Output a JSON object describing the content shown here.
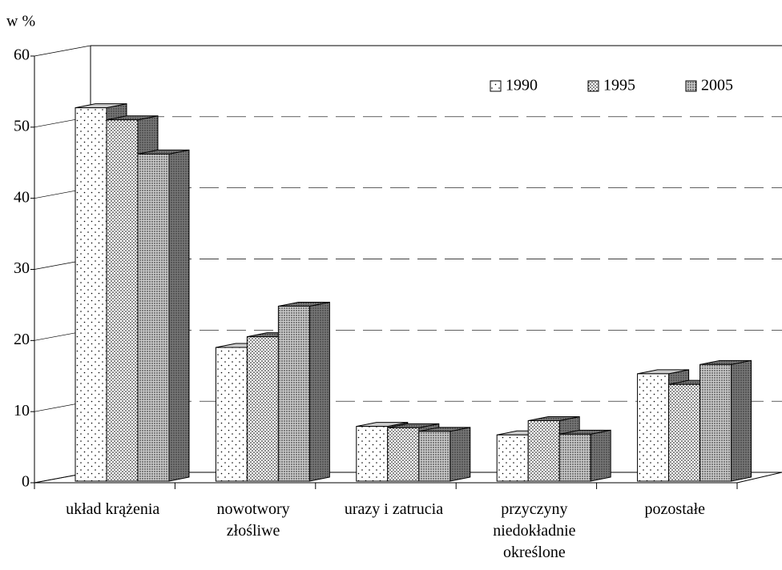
{
  "chart_data": {
    "type": "bar3d",
    "y_axis_label": "w %",
    "categories": [
      "układ krążenia",
      "nowotwory\nzłośliwe",
      "urazy i zatrucia",
      "przyczyny\nniedokładnie\nokreślone",
      "pozostałe"
    ],
    "series": [
      {
        "name": "1990",
        "color": "#ffffff",
        "values": [
          52.5,
          18.8,
          7.7,
          6.5,
          15.1
        ]
      },
      {
        "name": "1995",
        "color": "#dddddd",
        "values": [
          50.8,
          20.3,
          7.5,
          8.5,
          13.6
        ]
      },
      {
        "name": "2005",
        "color": "#bbbbbb",
        "values": [
          46.0,
          24.6,
          7.0,
          6.6,
          16.4
        ]
      }
    ],
    "ylim": [
      0,
      60
    ],
    "yticks": [
      0,
      10,
      20,
      30,
      40,
      50,
      60
    ],
    "grid": true,
    "legend": "top-right"
  }
}
